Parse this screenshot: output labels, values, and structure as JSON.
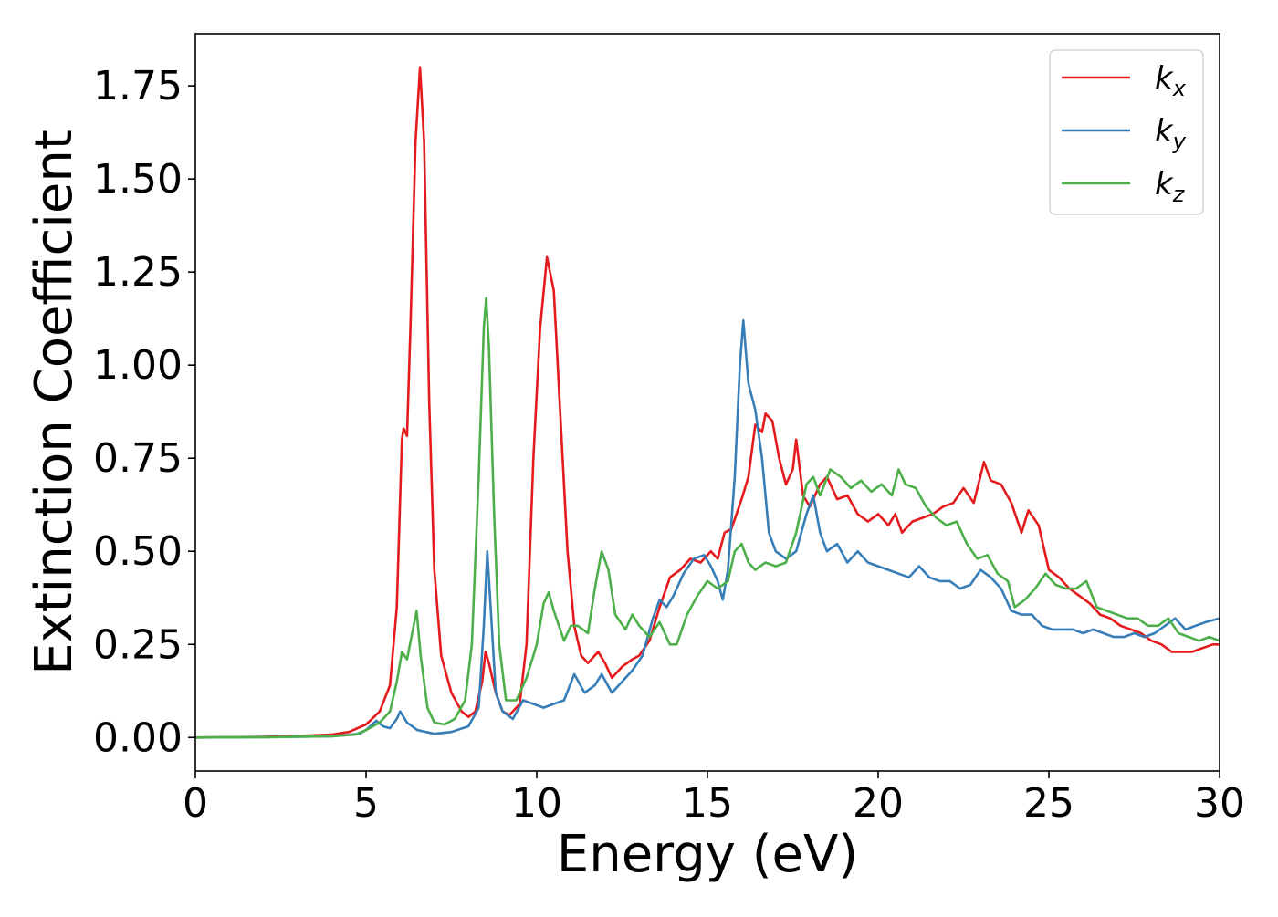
{
  "chart_data": {
    "type": "line",
    "title": "",
    "xlabel": "Energy (eV)",
    "ylabel": "Extinction Coefficient",
    "xlim": [
      0,
      30
    ],
    "ylim": [
      -0.09,
      1.89
    ],
    "x_ticks": [
      "0",
      "5",
      "10",
      "15",
      "20",
      "25",
      "30"
    ],
    "x_tick_values": [
      0,
      5,
      10,
      15,
      20,
      25,
      30
    ],
    "y_ticks": [
      "0.00",
      "0.25",
      "0.50",
      "0.75",
      "1.00",
      "1.25",
      "1.50",
      "1.75"
    ],
    "y_tick_values": [
      0,
      0.25,
      0.5,
      0.75,
      1.0,
      1.25,
      1.5,
      1.75
    ],
    "grid": false,
    "legend_position": "top-right",
    "series": [
      {
        "name": "k_x",
        "label_base": "k",
        "label_sub": "x",
        "color": "#e41a1c",
        "points": [
          [
            0,
            0
          ],
          [
            1,
            0.001
          ],
          [
            2,
            0.002
          ],
          [
            3,
            0.004
          ],
          [
            4,
            0.008
          ],
          [
            4.5,
            0.015
          ],
          [
            5,
            0.035
          ],
          [
            5.4,
            0.07
          ],
          [
            5.7,
            0.14
          ],
          [
            5.9,
            0.35
          ],
          [
            6.05,
            0.8
          ],
          [
            6.1,
            0.83
          ],
          [
            6.2,
            0.81
          ],
          [
            6.3,
            1.1
          ],
          [
            6.45,
            1.6
          ],
          [
            6.58,
            1.8
          ],
          [
            6.7,
            1.6
          ],
          [
            6.85,
            0.9
          ],
          [
            7.0,
            0.45
          ],
          [
            7.2,
            0.22
          ],
          [
            7.5,
            0.12
          ],
          [
            7.8,
            0.07
          ],
          [
            8.0,
            0.055
          ],
          [
            8.2,
            0.07
          ],
          [
            8.4,
            0.15
          ],
          [
            8.5,
            0.23
          ],
          [
            8.6,
            0.2
          ],
          [
            8.8,
            0.12
          ],
          [
            9.0,
            0.07
          ],
          [
            9.2,
            0.06
          ],
          [
            9.5,
            0.09
          ],
          [
            9.7,
            0.25
          ],
          [
            9.9,
            0.75
          ],
          [
            10.1,
            1.1
          ],
          [
            10.3,
            1.29
          ],
          [
            10.5,
            1.2
          ],
          [
            10.7,
            0.85
          ],
          [
            10.9,
            0.5
          ],
          [
            11.1,
            0.3
          ],
          [
            11.3,
            0.22
          ],
          [
            11.5,
            0.2
          ],
          [
            11.8,
            0.23
          ],
          [
            12.0,
            0.2
          ],
          [
            12.2,
            0.16
          ],
          [
            12.5,
            0.19
          ],
          [
            12.8,
            0.21
          ],
          [
            13.0,
            0.22
          ],
          [
            13.3,
            0.26
          ],
          [
            13.6,
            0.35
          ],
          [
            13.9,
            0.43
          ],
          [
            14.2,
            0.45
          ],
          [
            14.5,
            0.48
          ],
          [
            14.8,
            0.47
          ],
          [
            15.1,
            0.5
          ],
          [
            15.3,
            0.48
          ],
          [
            15.5,
            0.55
          ],
          [
            15.7,
            0.56
          ],
          [
            16.0,
            0.64
          ],
          [
            16.2,
            0.7
          ],
          [
            16.4,
            0.84
          ],
          [
            16.6,
            0.82
          ],
          [
            16.7,
            0.87
          ],
          [
            16.9,
            0.85
          ],
          [
            17.1,
            0.75
          ],
          [
            17.3,
            0.68
          ],
          [
            17.5,
            0.72
          ],
          [
            17.6,
            0.8
          ],
          [
            17.8,
            0.65
          ],
          [
            18.0,
            0.62
          ],
          [
            18.3,
            0.68
          ],
          [
            18.5,
            0.7
          ],
          [
            18.8,
            0.64
          ],
          [
            19.1,
            0.65
          ],
          [
            19.4,
            0.6
          ],
          [
            19.7,
            0.58
          ],
          [
            20.0,
            0.6
          ],
          [
            20.3,
            0.57
          ],
          [
            20.5,
            0.6
          ],
          [
            20.7,
            0.55
          ],
          [
            21.0,
            0.58
          ],
          [
            21.3,
            0.59
          ],
          [
            21.6,
            0.6
          ],
          [
            21.9,
            0.62
          ],
          [
            22.2,
            0.63
          ],
          [
            22.5,
            0.67
          ],
          [
            22.8,
            0.63
          ],
          [
            23.1,
            0.74
          ],
          [
            23.3,
            0.69
          ],
          [
            23.6,
            0.68
          ],
          [
            23.9,
            0.63
          ],
          [
            24.2,
            0.55
          ],
          [
            24.4,
            0.61
          ],
          [
            24.7,
            0.57
          ],
          [
            25.0,
            0.45
          ],
          [
            25.3,
            0.43
          ],
          [
            25.6,
            0.4
          ],
          [
            25.9,
            0.38
          ],
          [
            26.2,
            0.36
          ],
          [
            26.5,
            0.33
          ],
          [
            26.8,
            0.32
          ],
          [
            27.1,
            0.3
          ],
          [
            27.4,
            0.29
          ],
          [
            27.7,
            0.28
          ],
          [
            28.0,
            0.26
          ],
          [
            28.3,
            0.25
          ],
          [
            28.6,
            0.23
          ],
          [
            28.9,
            0.23
          ],
          [
            29.2,
            0.23
          ],
          [
            29.5,
            0.24
          ],
          [
            29.8,
            0.25
          ],
          [
            30,
            0.25
          ]
        ]
      },
      {
        "name": "k_y",
        "label_base": "k",
        "label_sub": "y",
        "color": "#377eb8",
        "points": [
          [
            0,
            0
          ],
          [
            2,
            0.001
          ],
          [
            4,
            0.003
          ],
          [
            4.8,
            0.01
          ],
          [
            5.0,
            0.02
          ],
          [
            5.3,
            0.045
          ],
          [
            5.5,
            0.03
          ],
          [
            5.7,
            0.025
          ],
          [
            5.9,
            0.05
          ],
          [
            6.0,
            0.07
          ],
          [
            6.2,
            0.04
          ],
          [
            6.5,
            0.02
          ],
          [
            7.0,
            0.01
          ],
          [
            7.5,
            0.015
          ],
          [
            8.0,
            0.03
          ],
          [
            8.3,
            0.08
          ],
          [
            8.45,
            0.3
          ],
          [
            8.55,
            0.5
          ],
          [
            8.65,
            0.35
          ],
          [
            8.8,
            0.12
          ],
          [
            9.0,
            0.07
          ],
          [
            9.3,
            0.05
          ],
          [
            9.6,
            0.1
          ],
          [
            9.9,
            0.09
          ],
          [
            10.2,
            0.08
          ],
          [
            10.5,
            0.09
          ],
          [
            10.8,
            0.1
          ],
          [
            11.1,
            0.17
          ],
          [
            11.4,
            0.12
          ],
          [
            11.7,
            0.14
          ],
          [
            11.9,
            0.17
          ],
          [
            12.2,
            0.12
          ],
          [
            12.5,
            0.15
          ],
          [
            12.8,
            0.18
          ],
          [
            13.1,
            0.22
          ],
          [
            13.4,
            0.32
          ],
          [
            13.6,
            0.37
          ],
          [
            13.8,
            0.35
          ],
          [
            14.0,
            0.38
          ],
          [
            14.3,
            0.44
          ],
          [
            14.6,
            0.48
          ],
          [
            14.9,
            0.49
          ],
          [
            15.1,
            0.46
          ],
          [
            15.3,
            0.42
          ],
          [
            15.45,
            0.37
          ],
          [
            15.6,
            0.45
          ],
          [
            15.8,
            0.7
          ],
          [
            15.95,
            1.0
          ],
          [
            16.05,
            1.12
          ],
          [
            16.2,
            0.95
          ],
          [
            16.4,
            0.88
          ],
          [
            16.6,
            0.75
          ],
          [
            16.8,
            0.55
          ],
          [
            17.0,
            0.5
          ],
          [
            17.3,
            0.48
          ],
          [
            17.6,
            0.5
          ],
          [
            17.9,
            0.6
          ],
          [
            18.1,
            0.65
          ],
          [
            18.3,
            0.55
          ],
          [
            18.5,
            0.5
          ],
          [
            18.8,
            0.52
          ],
          [
            19.1,
            0.47
          ],
          [
            19.4,
            0.5
          ],
          [
            19.7,
            0.47
          ],
          [
            20.0,
            0.46
          ],
          [
            20.3,
            0.45
          ],
          [
            20.6,
            0.44
          ],
          [
            20.9,
            0.43
          ],
          [
            21.2,
            0.46
          ],
          [
            21.5,
            0.43
          ],
          [
            21.8,
            0.42
          ],
          [
            22.1,
            0.42
          ],
          [
            22.4,
            0.4
          ],
          [
            22.7,
            0.41
          ],
          [
            23.0,
            0.45
          ],
          [
            23.3,
            0.43
          ],
          [
            23.6,
            0.4
          ],
          [
            23.9,
            0.34
          ],
          [
            24.2,
            0.33
          ],
          [
            24.5,
            0.33
          ],
          [
            24.8,
            0.3
          ],
          [
            25.1,
            0.29
          ],
          [
            25.4,
            0.29
          ],
          [
            25.7,
            0.29
          ],
          [
            26.0,
            0.28
          ],
          [
            26.3,
            0.29
          ],
          [
            26.6,
            0.28
          ],
          [
            26.9,
            0.27
          ],
          [
            27.2,
            0.27
          ],
          [
            27.5,
            0.28
          ],
          [
            27.8,
            0.27
          ],
          [
            28.1,
            0.28
          ],
          [
            28.4,
            0.3
          ],
          [
            28.7,
            0.32
          ],
          [
            29.0,
            0.29
          ],
          [
            29.3,
            0.3
          ],
          [
            29.6,
            0.31
          ],
          [
            30,
            0.32
          ]
        ]
      },
      {
        "name": "k_z",
        "label_base": "k",
        "label_sub": "z",
        "color": "#4daf4a",
        "points": [
          [
            0,
            0
          ],
          [
            2,
            0.001
          ],
          [
            4,
            0.003
          ],
          [
            4.7,
            0.008
          ],
          [
            5.0,
            0.02
          ],
          [
            5.4,
            0.04
          ],
          [
            5.7,
            0.07
          ],
          [
            5.9,
            0.15
          ],
          [
            6.05,
            0.23
          ],
          [
            6.2,
            0.21
          ],
          [
            6.35,
            0.28
          ],
          [
            6.48,
            0.34
          ],
          [
            6.6,
            0.22
          ],
          [
            6.8,
            0.08
          ],
          [
            7.0,
            0.04
          ],
          [
            7.3,
            0.035
          ],
          [
            7.6,
            0.05
          ],
          [
            7.9,
            0.1
          ],
          [
            8.1,
            0.25
          ],
          [
            8.3,
            0.7
          ],
          [
            8.45,
            1.1
          ],
          [
            8.52,
            1.18
          ],
          [
            8.6,
            1.05
          ],
          [
            8.75,
            0.6
          ],
          [
            8.9,
            0.25
          ],
          [
            9.1,
            0.1
          ],
          [
            9.4,
            0.1
          ],
          [
            9.7,
            0.16
          ],
          [
            10.0,
            0.25
          ],
          [
            10.2,
            0.36
          ],
          [
            10.35,
            0.39
          ],
          [
            10.5,
            0.34
          ],
          [
            10.8,
            0.26
          ],
          [
            11.0,
            0.3
          ],
          [
            11.2,
            0.3
          ],
          [
            11.5,
            0.28
          ],
          [
            11.7,
            0.4
          ],
          [
            11.9,
            0.5
          ],
          [
            12.1,
            0.45
          ],
          [
            12.3,
            0.33
          ],
          [
            12.6,
            0.29
          ],
          [
            12.8,
            0.33
          ],
          [
            13.0,
            0.3
          ],
          [
            13.3,
            0.27
          ],
          [
            13.6,
            0.31
          ],
          [
            13.9,
            0.25
          ],
          [
            14.1,
            0.25
          ],
          [
            14.4,
            0.33
          ],
          [
            14.7,
            0.38
          ],
          [
            15.0,
            0.42
          ],
          [
            15.3,
            0.4
          ],
          [
            15.6,
            0.42
          ],
          [
            15.8,
            0.5
          ],
          [
            16.0,
            0.52
          ],
          [
            16.2,
            0.47
          ],
          [
            16.4,
            0.45
          ],
          [
            16.7,
            0.47
          ],
          [
            17.0,
            0.46
          ],
          [
            17.3,
            0.47
          ],
          [
            17.6,
            0.55
          ],
          [
            17.9,
            0.68
          ],
          [
            18.1,
            0.7
          ],
          [
            18.3,
            0.65
          ],
          [
            18.6,
            0.72
          ],
          [
            18.9,
            0.7
          ],
          [
            19.2,
            0.67
          ],
          [
            19.5,
            0.69
          ],
          [
            19.8,
            0.66
          ],
          [
            20.1,
            0.68
          ],
          [
            20.4,
            0.65
          ],
          [
            20.6,
            0.72
          ],
          [
            20.8,
            0.68
          ],
          [
            21.1,
            0.67
          ],
          [
            21.4,
            0.62
          ],
          [
            21.7,
            0.59
          ],
          [
            22.0,
            0.57
          ],
          [
            22.3,
            0.58
          ],
          [
            22.6,
            0.52
          ],
          [
            22.9,
            0.48
          ],
          [
            23.2,
            0.49
          ],
          [
            23.5,
            0.44
          ],
          [
            23.8,
            0.42
          ],
          [
            24.0,
            0.35
          ],
          [
            24.3,
            0.37
          ],
          [
            24.6,
            0.4
          ],
          [
            24.9,
            0.44
          ],
          [
            25.2,
            0.41
          ],
          [
            25.5,
            0.4
          ],
          [
            25.8,
            0.4
          ],
          [
            26.1,
            0.42
          ],
          [
            26.4,
            0.35
          ],
          [
            26.7,
            0.34
          ],
          [
            27.0,
            0.33
          ],
          [
            27.3,
            0.32
          ],
          [
            27.6,
            0.32
          ],
          [
            27.9,
            0.3
          ],
          [
            28.2,
            0.3
          ],
          [
            28.5,
            0.32
          ],
          [
            28.8,
            0.28
          ],
          [
            29.1,
            0.27
          ],
          [
            29.4,
            0.26
          ],
          [
            29.7,
            0.27
          ],
          [
            30,
            0.26
          ]
        ]
      }
    ]
  }
}
